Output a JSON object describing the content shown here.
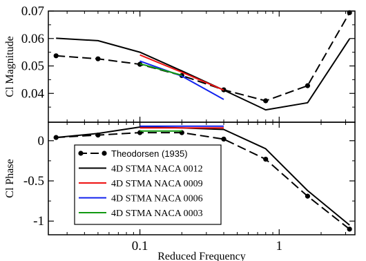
{
  "chart_data": [
    {
      "type": "line",
      "panel": "top",
      "ylabel": "Cl Magnitude",
      "xscale": "log",
      "xlim": [
        0.022,
        3.5
      ],
      "ylim": [
        0.0295,
        0.07
      ],
      "yticks": [
        0.04,
        0.05,
        0.06,
        0.07
      ],
      "ytick_labels": [
        "0.04",
        "0.05",
        "0.06",
        "0.07"
      ],
      "series": [
        {
          "name": "Theodorsen (1935)",
          "color": "#000000",
          "dashed": true,
          "markers": true,
          "x": [
            0.025,
            0.05,
            0.1,
            0.2,
            0.4,
            0.8,
            1.6,
            3.2
          ],
          "y": [
            0.0537,
            0.0526,
            0.0506,
            0.0465,
            0.0413,
            0.0373,
            0.0428,
            0.0694
          ]
        },
        {
          "name": "4D STMA NACA 0012",
          "color": "#000000",
          "x": [
            0.025,
            0.05,
            0.1,
            0.2,
            0.4,
            0.8,
            1.6,
            3.2
          ],
          "y": [
            0.0601,
            0.0592,
            0.055,
            0.0482,
            0.0412,
            0.034,
            0.0366,
            0.0599
          ]
        },
        {
          "name": "4D STMA NACA 0009",
          "color": "#ee1111",
          "x": [
            0.1,
            0.2,
            0.4
          ],
          "y": [
            0.054,
            0.0477,
            0.0412
          ]
        },
        {
          "name": "4D STMA NACA 0006",
          "color": "#1122ee",
          "x": [
            0.1,
            0.2,
            0.4
          ],
          "y": [
            0.0518,
            0.0463,
            0.0378
          ]
        },
        {
          "name": "4D STMA NACA 0003",
          "color": "#119911",
          "x": [
            0.1,
            0.2
          ],
          "y": [
            0.0508,
            0.0466
          ]
        }
      ]
    },
    {
      "type": "line",
      "panel": "bottom",
      "ylabel": "Cl Phase",
      "xlabel": "Reduced Frequency",
      "xscale": "log",
      "xlim": [
        0.022,
        3.5
      ],
      "ylim": [
        -1.17,
        0.23
      ],
      "yticks": [
        0,
        -0.5,
        -1
      ],
      "ytick_labels": [
        "0",
        "-0.5",
        "-1"
      ],
      "xticks": [
        0.1,
        1
      ],
      "xtick_labels": [
        "0.1",
        "1"
      ],
      "legend": "lower-left",
      "series": [
        {
          "name": "Theodorsen (1935)",
          "color": "#000000",
          "dashed": true,
          "markers": true,
          "x": [
            0.025,
            0.05,
            0.1,
            0.2,
            0.4,
            0.8,
            1.6,
            3.2
          ],
          "y": [
            0.04,
            0.07,
            0.1,
            0.1,
            0.02,
            -0.23,
            -0.69,
            -1.1
          ]
        },
        {
          "name": "4D STMA NACA 0012",
          "color": "#000000",
          "x": [
            0.025,
            0.05,
            0.1,
            0.2,
            0.4,
            0.8,
            1.6,
            3.2
          ],
          "y": [
            0.04,
            0.09,
            0.17,
            0.16,
            0.14,
            -0.1,
            -0.62,
            -1.05
          ]
        },
        {
          "name": "4D STMA NACA 0009",
          "color": "#ee1111",
          "x": [
            0.1,
            0.2,
            0.4
          ],
          "y": [
            0.16,
            0.16,
            0.16
          ]
        },
        {
          "name": "4D STMA NACA 0006",
          "color": "#1122ee",
          "x": [
            0.1,
            0.2,
            0.4
          ],
          "y": [
            0.18,
            0.18,
            0.18
          ]
        },
        {
          "name": "4D STMA NACA 0003",
          "color": "#119911",
          "x": [
            0.1,
            0.2
          ],
          "y": [
            0.12,
            0.12
          ]
        }
      ]
    }
  ]
}
